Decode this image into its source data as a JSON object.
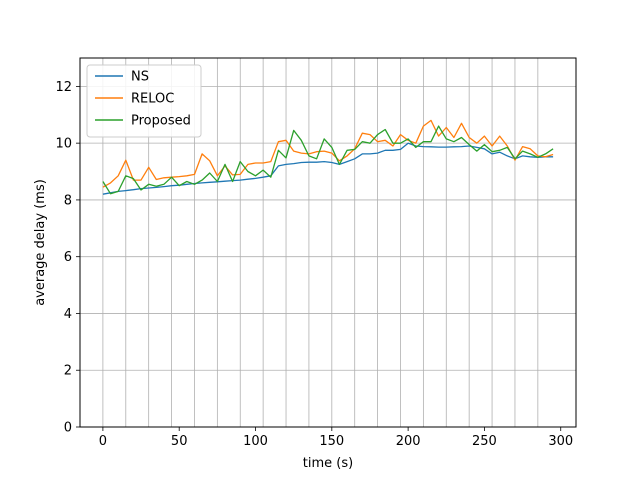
{
  "chart_data": {
    "type": "line",
    "title": "",
    "xlabel": "time (s)",
    "ylabel": "average delay (ms)",
    "xlim": [
      -15,
      310
    ],
    "ylim": [
      0,
      13
    ],
    "xticks": [
      0,
      50,
      100,
      150,
      200,
      250,
      300
    ],
    "yticks": [
      0,
      2,
      4,
      6,
      8,
      10,
      12
    ],
    "grid": true,
    "legend_position": "top-left",
    "x": [
      0,
      5,
      10,
      15,
      20,
      25,
      30,
      35,
      40,
      45,
      50,
      55,
      60,
      65,
      70,
      75,
      80,
      85,
      90,
      95,
      100,
      105,
      110,
      115,
      120,
      125,
      130,
      135,
      140,
      145,
      150,
      155,
      160,
      165,
      170,
      175,
      180,
      185,
      190,
      195,
      200,
      205,
      210,
      215,
      220,
      225,
      230,
      235,
      240,
      245,
      250,
      255,
      260,
      265,
      270,
      275,
      280,
      285,
      290,
      295
    ],
    "series": [
      {
        "name": "NS",
        "color": "#1f77b4",
        "values": [
          8.2,
          8.25,
          8.3,
          8.33,
          8.36,
          8.4,
          8.42,
          8.44,
          8.47,
          8.5,
          8.52,
          8.55,
          8.58,
          8.6,
          8.62,
          8.64,
          8.66,
          8.68,
          8.7,
          8.73,
          8.76,
          8.8,
          8.85,
          9.2,
          9.25,
          9.28,
          9.32,
          9.33,
          9.33,
          9.35,
          9.32,
          9.25,
          9.35,
          9.45,
          9.62,
          9.62,
          9.65,
          9.75,
          9.75,
          9.78,
          10.0,
          9.9,
          9.88,
          9.87,
          9.86,
          9.86,
          9.87,
          9.88,
          9.9,
          9.85,
          9.8,
          9.62,
          9.68,
          9.55,
          9.45,
          9.55,
          9.52,
          9.5,
          9.52,
          9.52
        ]
      },
      {
        "name": "RELOC",
        "color": "#ff7f0e",
        "values": [
          8.45,
          8.6,
          8.85,
          9.4,
          8.7,
          8.7,
          9.15,
          8.72,
          8.78,
          8.8,
          8.82,
          8.85,
          8.9,
          9.62,
          9.38,
          8.85,
          9.2,
          8.88,
          8.9,
          9.25,
          9.3,
          9.3,
          9.35,
          10.05,
          10.1,
          9.72,
          9.65,
          9.62,
          9.7,
          9.72,
          9.65,
          9.38,
          9.55,
          9.8,
          10.35,
          10.3,
          10.05,
          10.1,
          9.9,
          10.3,
          10.1,
          10.0,
          10.6,
          10.8,
          10.25,
          10.55,
          10.2,
          10.7,
          10.2,
          10.0,
          10.25,
          9.9,
          10.25,
          9.9,
          9.4,
          9.88,
          9.8,
          9.55,
          9.52,
          9.6
        ]
      },
      {
        "name": "Proposed",
        "color": "#2ca02c",
        "values": [
          8.65,
          8.22,
          8.3,
          8.85,
          8.75,
          8.35,
          8.55,
          8.48,
          8.55,
          8.8,
          8.5,
          8.65,
          8.55,
          8.7,
          8.95,
          8.65,
          9.25,
          8.65,
          9.35,
          9.0,
          8.85,
          9.05,
          8.8,
          9.75,
          9.48,
          10.45,
          10.1,
          9.55,
          9.45,
          10.15,
          9.85,
          9.25,
          9.75,
          9.78,
          10.05,
          10.0,
          10.3,
          10.48,
          10.0,
          10.0,
          10.15,
          9.85,
          10.05,
          10.05,
          10.6,
          10.15,
          10.05,
          10.2,
          9.95,
          9.72,
          9.95,
          9.7,
          9.75,
          9.85,
          9.45,
          9.72,
          9.62,
          9.5,
          9.62,
          9.8
        ]
      }
    ]
  }
}
